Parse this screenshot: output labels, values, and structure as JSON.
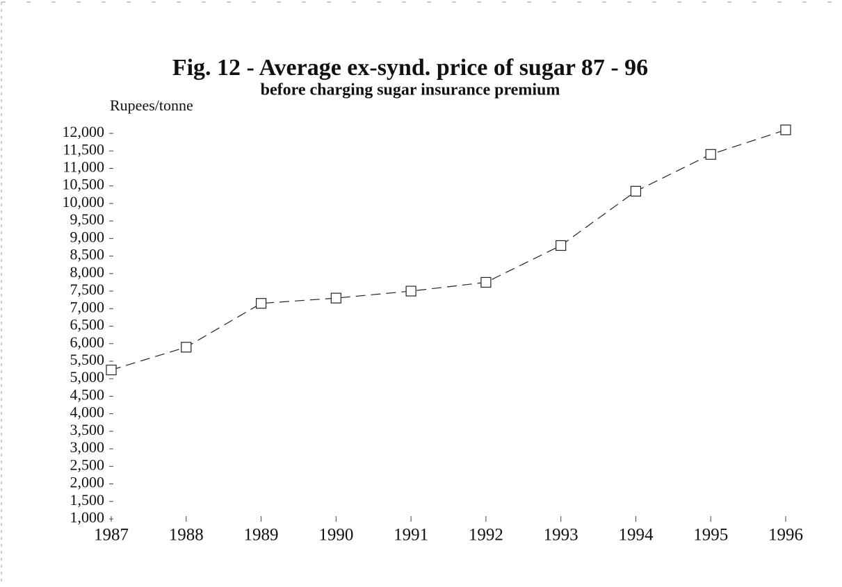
{
  "chart_data": {
    "type": "line",
    "title": "Fig. 12 - Average ex-synd. price of sugar 87 - 96",
    "subtitle": "before charging sugar insurance premium",
    "y_label": "Rupees/tonne",
    "x": [
      1987,
      1988,
      1989,
      1990,
      1991,
      1992,
      1993,
      1994,
      1995,
      1996
    ],
    "values": [
      5250,
      5900,
      7150,
      7300,
      7500,
      7750,
      8800,
      10350,
      11400,
      12100
    ],
    "color": "#222222",
    "xlim": [
      1987,
      1996
    ],
    "xticks": [
      1987,
      1988,
      1989,
      1990,
      1991,
      1992,
      1993,
      1994,
      1995,
      1996
    ],
    "ylim": [
      1000,
      12000
    ],
    "yticks": [
      {
        "value": 1000,
        "label": "1,000"
      },
      {
        "value": 1500,
        "label": "1,500"
      },
      {
        "value": 2000,
        "label": "2,000"
      },
      {
        "value": 2500,
        "label": "2,500"
      },
      {
        "value": 3000,
        "label": "3,000"
      },
      {
        "value": 3500,
        "label": "3,500"
      },
      {
        "value": 4000,
        "label": "4,000"
      },
      {
        "value": 4500,
        "label": "4,500"
      },
      {
        "value": 5000,
        "label": "5,000"
      },
      {
        "value": 5500,
        "label": "5,500"
      },
      {
        "value": 6000,
        "label": "6,000"
      },
      {
        "value": 6500,
        "label": "6,500"
      },
      {
        "value": 7000,
        "label": "7,000"
      },
      {
        "value": 7500,
        "label": "7,500"
      },
      {
        "value": 8000,
        "label": "8,000"
      },
      {
        "value": 8500,
        "label": "8,500"
      },
      {
        "value": 9000,
        "label": "9,000"
      },
      {
        "value": 9500,
        "label": "9,500"
      },
      {
        "value": 10000,
        "label": "10,000"
      },
      {
        "value": 10500,
        "label": "10,500"
      },
      {
        "value": 11000,
        "label": "11,000"
      },
      {
        "value": 11500,
        "label": "11,500"
      },
      {
        "value": 12000,
        "label": "12,000"
      }
    ],
    "grid": false
  }
}
